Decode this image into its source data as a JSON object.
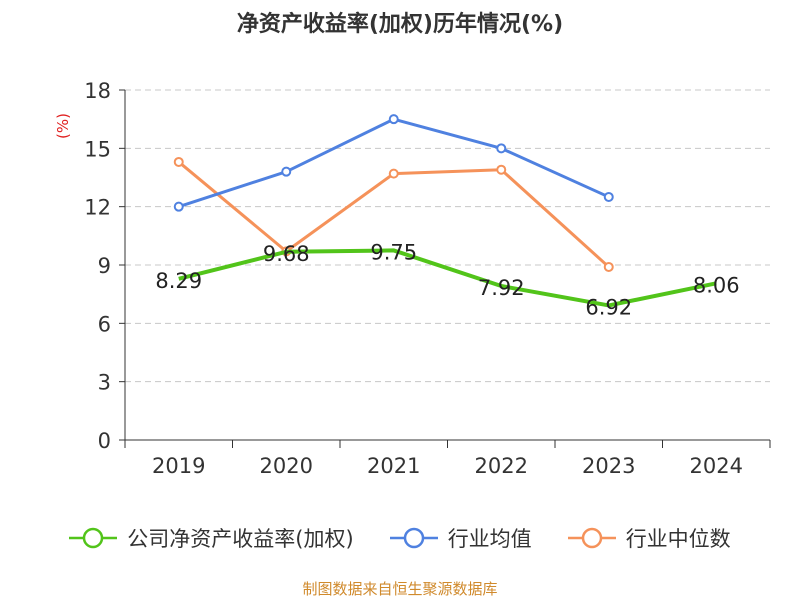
{
  "chart_data": {
    "type": "line",
    "title": "净资产收益率(加权)历年情况(%)",
    "ylabel": "(%)",
    "xlabel": "",
    "categories": [
      "2019",
      "2020",
      "2021",
      "2022",
      "2023",
      "2024"
    ],
    "ylim": [
      0,
      18
    ],
    "yticks": [
      0,
      3,
      6,
      9,
      12,
      15,
      18
    ],
    "grid": true,
    "legend_position": "bottom",
    "series": [
      {
        "name": "公司净资产收益率(加权)",
        "color": "#52c41a",
        "values": [
          8.29,
          9.68,
          9.75,
          7.92,
          6.92,
          8.06
        ],
        "show_labels": true
      },
      {
        "name": "行业均值",
        "color": "#4f81e0",
        "values": [
          12.0,
          13.8,
          16.5,
          15.0,
          12.5,
          null
        ],
        "show_labels": false
      },
      {
        "name": "行业中位数",
        "color": "#f5925a",
        "values": [
          14.3,
          9.7,
          13.7,
          13.9,
          8.9,
          null
        ],
        "show_labels": false
      }
    ]
  },
  "footer": {
    "source": "制图数据来自恒生聚源数据库"
  }
}
